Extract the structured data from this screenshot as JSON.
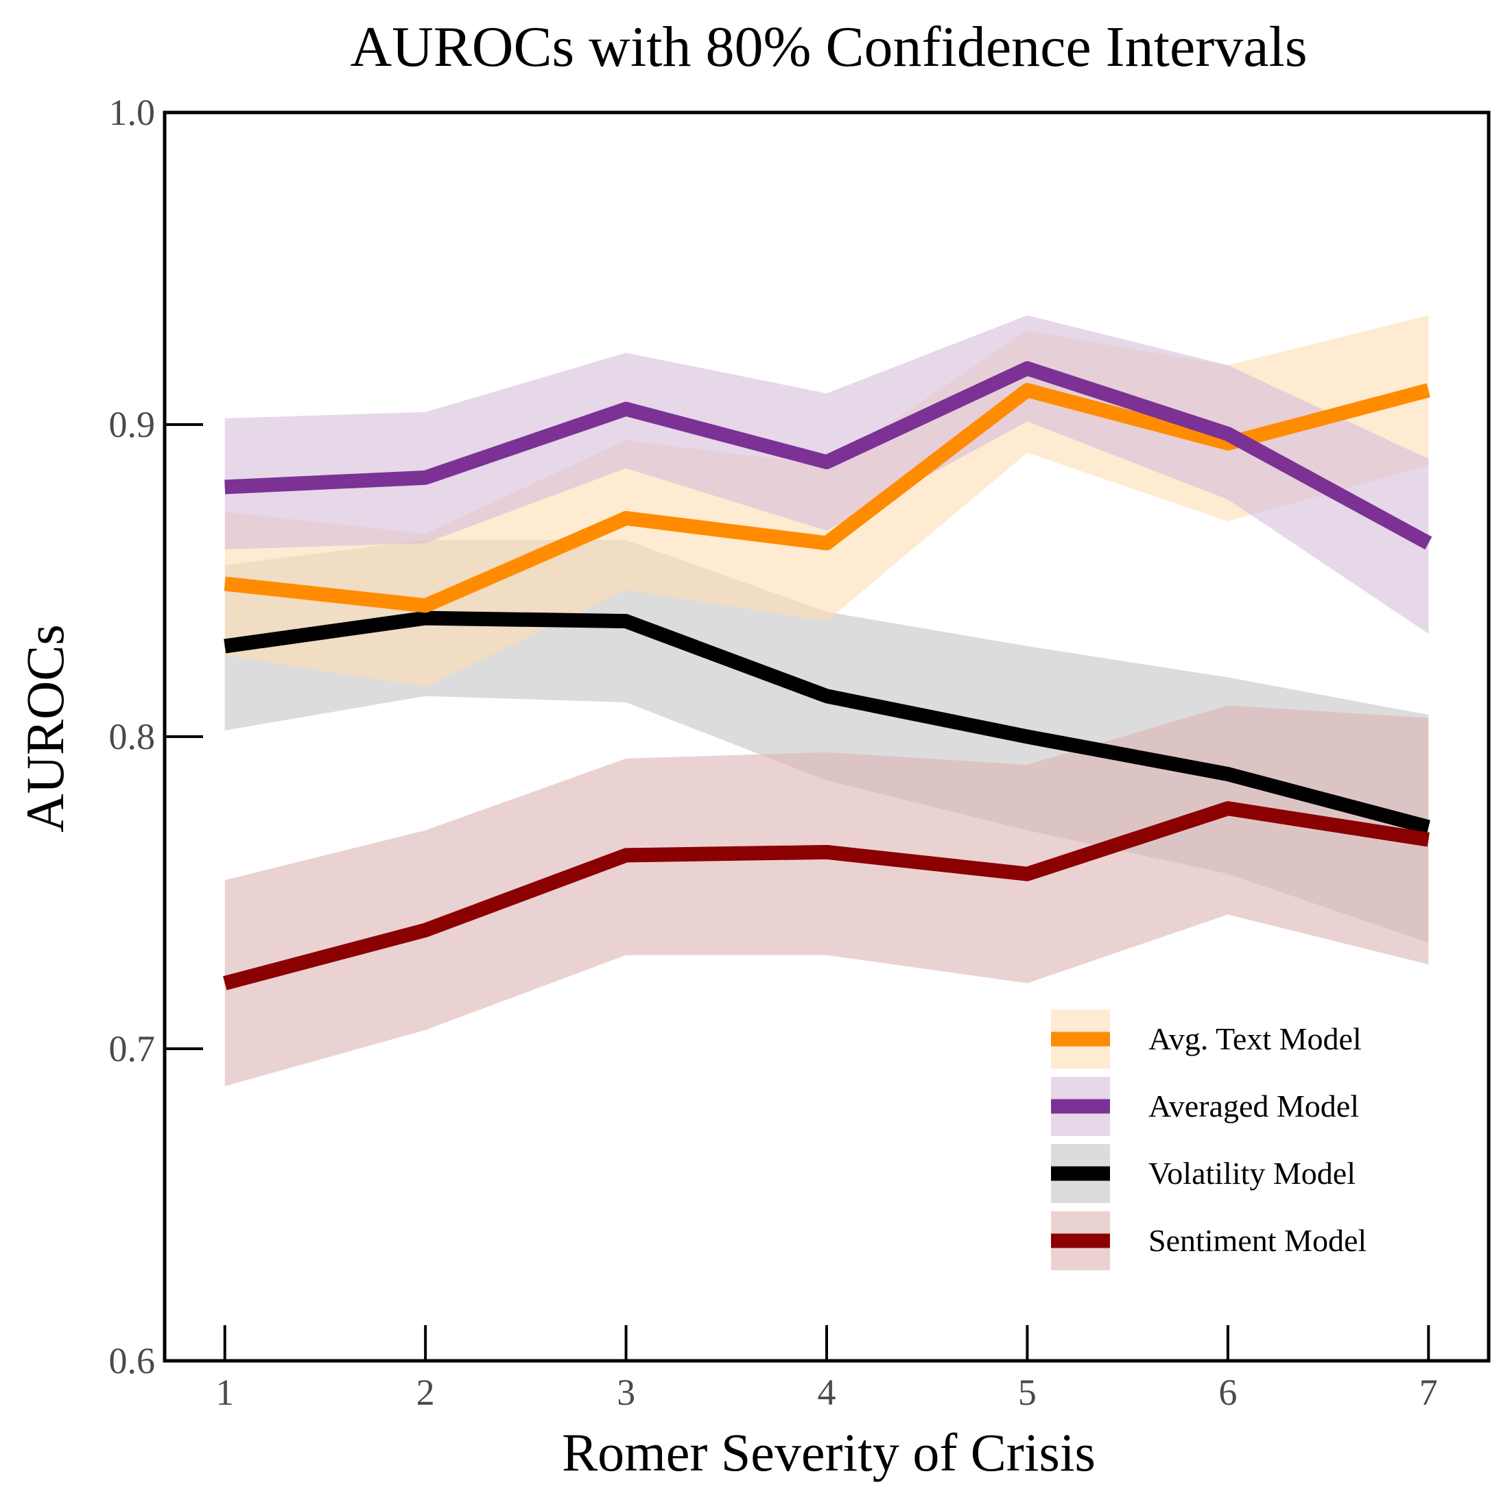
{
  "chart_data": {
    "type": "line",
    "title": "AUROCs with 80% Confidence Intervals",
    "xlabel": "Romer Severity of Crisis",
    "ylabel": "AUROCs",
    "x": [
      1,
      2,
      3,
      4,
      5,
      6,
      7
    ],
    "xlim": [
      0.7,
      7.3
    ],
    "ylim": [
      0.6,
      1.0
    ],
    "yticks": [
      0.6,
      0.7,
      0.8,
      0.9,
      1.0
    ],
    "ytick_labels": [
      "0.6",
      "0.7",
      "0.8",
      "0.9",
      "1.0"
    ],
    "xtick_labels": [
      "1",
      "2",
      "3",
      "4",
      "5",
      "6",
      "7"
    ],
    "grid": false,
    "legend_position": "bottom-right",
    "series": [
      {
        "name": "Volatility Model",
        "color": "#000000",
        "band_color": "#c4c4c4",
        "values": [
          0.829,
          0.838,
          0.837,
          0.813,
          0.8,
          0.788,
          0.771
        ],
        "lower": [
          0.802,
          0.813,
          0.811,
          0.786,
          0.77,
          0.756,
          0.734
        ],
        "upper": [
          0.855,
          0.863,
          0.863,
          0.84,
          0.829,
          0.819,
          0.807
        ]
      },
      {
        "name": "Sentiment Model",
        "color": "#8b0000",
        "band_color": "#ddb4b4",
        "values": [
          0.721,
          0.738,
          0.762,
          0.763,
          0.756,
          0.777,
          0.767
        ],
        "lower": [
          0.688,
          0.706,
          0.73,
          0.73,
          0.721,
          0.743,
          0.727
        ],
        "upper": [
          0.754,
          0.77,
          0.793,
          0.795,
          0.791,
          0.81,
          0.806
        ]
      },
      {
        "name": "Avg. Text Model",
        "color": "#ff8c00",
        "band_color": "#ffdcb4",
        "values": [
          0.849,
          0.842,
          0.87,
          0.862,
          0.911,
          0.894,
          0.911
        ],
        "lower": [
          0.826,
          0.816,
          0.847,
          0.837,
          0.891,
          0.869,
          0.887
        ],
        "upper": [
          0.872,
          0.865,
          0.895,
          0.887,
          0.93,
          0.919,
          0.935
        ]
      },
      {
        "name": "Averaged Model",
        "color": "#7b3294",
        "band_color": "#d5bcdb",
        "values": [
          0.88,
          0.883,
          0.905,
          0.888,
          0.918,
          0.897,
          0.862
        ],
        "lower": [
          0.86,
          0.862,
          0.886,
          0.866,
          0.901,
          0.876,
          0.833
        ],
        "upper": [
          0.902,
          0.904,
          0.923,
          0.91,
          0.935,
          0.919,
          0.889
        ]
      }
    ],
    "legend": [
      {
        "name": "Avg. Text Model",
        "color": "#ff8c00",
        "band_color": "#ffdcb4"
      },
      {
        "name": "Averaged Model",
        "color": "#7b3294",
        "band_color": "#d5bcdb"
      },
      {
        "name": "Volatility Model",
        "color": "#000000",
        "band_color": "#c4c4c4"
      },
      {
        "name": "Sentiment Model",
        "color": "#8b0000",
        "band_color": "#ddb4b4"
      }
    ]
  }
}
